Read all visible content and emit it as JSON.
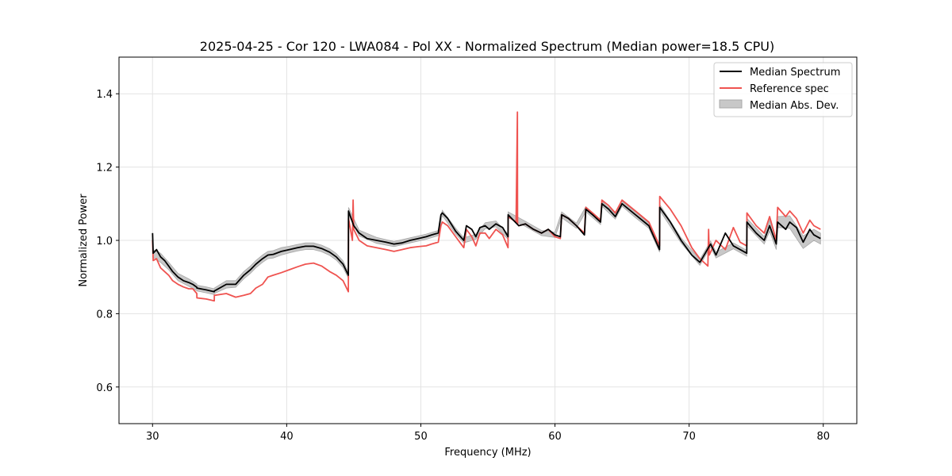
{
  "chart_data": {
    "type": "line",
    "title": "2025-04-25 - Cor 120 - LWA084 - Pol XX - Normalized Spectrum (Median power=18.5 CPU)",
    "xlabel": "Frequency (MHz)",
    "ylabel": "Normalized Power",
    "xlim": [
      27.5,
      82.5
    ],
    "ylim": [
      0.5,
      1.5
    ],
    "xticks": [
      30,
      40,
      50,
      60,
      70,
      80
    ],
    "yticks": [
      0.6,
      0.8,
      1.0,
      1.2,
      1.4
    ],
    "xtick_labels": [
      "30",
      "40",
      "50",
      "60",
      "70",
      "80"
    ],
    "ytick_labels": [
      "0.6",
      "0.8",
      "1.0",
      "1.2",
      "1.4"
    ],
    "grid": true,
    "legend_location": "top-right",
    "colors": {
      "median": "#000000",
      "reference": "#ef5350",
      "mad_fill": "#c8c8c8",
      "mad_edge": "#a8a8a8",
      "grid": "#e3e3e3"
    },
    "series": [
      {
        "name": "Median Spectrum",
        "x": [
          30.0,
          30.05,
          30.3,
          30.6,
          30.9,
          31.2,
          31.5,
          31.9,
          32.3,
          32.7,
          33.0,
          33.3,
          33.31,
          34.0,
          34.6,
          34.61,
          35.5,
          36.2,
          36.8,
          37.3,
          37.7,
          38.2,
          38.6,
          39.0,
          39.6,
          40.2,
          40.8,
          41.4,
          42.0,
          42.6,
          43.2,
          43.7,
          44.2,
          44.6,
          44.61,
          45.0,
          45.4,
          46.0,
          46.7,
          47.4,
          48.0,
          48.6,
          49.2,
          49.8,
          50.4,
          50.8,
          51.3,
          51.5,
          51.6,
          52.0,
          52.6,
          53.2,
          53.4,
          53.8,
          54.1,
          54.4,
          54.8,
          55.1,
          55.6,
          56.1,
          56.5,
          56.51,
          57.3,
          57.8,
          58.4,
          59.0,
          59.5,
          60.0,
          60.4,
          60.5,
          61.0,
          61.6,
          62.2,
          62.3,
          62.8,
          63.4,
          63.5,
          64.0,
          64.5,
          65.0,
          66.0,
          67.0,
          67.8,
          67.81,
          68.6,
          69.4,
          70.2,
          70.8,
          71.6,
          72.0,
          72.7,
          73.3,
          73.8,
          74.3,
          74.31,
          75.0,
          75.6,
          76.0,
          76.5,
          76.6,
          77.2,
          77.5,
          78.0,
          78.5,
          79.0,
          79.3,
          79.8
        ],
        "values": [
          1.02,
          0.965,
          0.975,
          0.955,
          0.945,
          0.93,
          0.915,
          0.9,
          0.89,
          0.885,
          0.88,
          0.872,
          0.87,
          0.865,
          0.86,
          0.862,
          0.88,
          0.88,
          0.905,
          0.92,
          0.935,
          0.95,
          0.96,
          0.962,
          0.97,
          0.975,
          0.98,
          0.984,
          0.984,
          0.978,
          0.968,
          0.955,
          0.935,
          0.905,
          1.08,
          1.04,
          1.02,
          1.005,
          1.0,
          0.995,
          0.99,
          0.993,
          1.0,
          1.005,
          1.01,
          1.015,
          1.02,
          1.07,
          1.075,
          1.06,
          1.025,
          1.0,
          1.04,
          1.03,
          1.01,
          1.035,
          1.04,
          1.03,
          1.045,
          1.035,
          1.01,
          1.07,
          1.04,
          1.045,
          1.03,
          1.02,
          1.03,
          1.015,
          1.01,
          1.07,
          1.06,
          1.04,
          1.015,
          1.085,
          1.07,
          1.05,
          1.1,
          1.085,
          1.065,
          1.1,
          1.07,
          1.04,
          0.975,
          1.09,
          1.05,
          1.0,
          0.96,
          0.94,
          0.99,
          0.96,
          1.02,
          0.985,
          0.975,
          0.965,
          1.05,
          1.02,
          1.0,
          1.04,
          0.99,
          1.05,
          1.03,
          1.05,
          1.035,
          0.995,
          1.03,
          1.015,
          1.005
        ]
      },
      {
        "name": "Reference spec",
        "x": [
          30.0,
          30.05,
          30.3,
          30.6,
          30.9,
          31.2,
          31.5,
          31.9,
          32.3,
          32.7,
          33.0,
          33.3,
          33.31,
          34.0,
          34.6,
          34.61,
          35.5,
          36.2,
          36.8,
          37.3,
          37.7,
          38.2,
          38.6,
          39.0,
          39.6,
          40.2,
          40.8,
          41.4,
          42.0,
          42.6,
          43.2,
          43.7,
          44.2,
          44.6,
          44.61,
          44.9,
          44.95,
          45.0,
          45.4,
          46.0,
          46.7,
          47.4,
          48.0,
          48.6,
          49.2,
          49.8,
          50.4,
          50.8,
          51.3,
          51.5,
          51.6,
          52.0,
          52.6,
          53.2,
          53.4,
          53.8,
          54.1,
          54.4,
          54.8,
          55.1,
          55.6,
          56.1,
          56.5,
          56.51,
          57.1,
          57.2,
          57.21,
          57.3,
          57.8,
          58.4,
          59.0,
          59.5,
          60.0,
          60.4,
          60.5,
          61.0,
          61.6,
          62.2,
          62.3,
          62.8,
          63.4,
          63.5,
          64.0,
          64.5,
          65.0,
          66.0,
          67.0,
          67.8,
          67.81,
          68.6,
          69.4,
          70.2,
          70.8,
          71.4,
          71.45,
          71.5,
          72.0,
          72.7,
          73.3,
          73.8,
          74.3,
          74.31,
          75.0,
          75.6,
          76.0,
          76.5,
          76.6,
          77.2,
          77.5,
          78.0,
          78.5,
          79.0,
          79.3,
          79.8
        ],
        "values": [
          1.0,
          0.945,
          0.95,
          0.925,
          0.915,
          0.905,
          0.89,
          0.88,
          0.873,
          0.868,
          0.868,
          0.855,
          0.843,
          0.84,
          0.835,
          0.85,
          0.855,
          0.845,
          0.85,
          0.855,
          0.87,
          0.88,
          0.9,
          0.905,
          0.912,
          0.92,
          0.928,
          0.935,
          0.938,
          0.93,
          0.915,
          0.905,
          0.89,
          0.86,
          1.06,
          1.0,
          1.11,
          1.03,
          1.0,
          0.985,
          0.98,
          0.975,
          0.97,
          0.975,
          0.98,
          0.983,
          0.985,
          0.99,
          0.995,
          1.04,
          1.05,
          1.04,
          1.01,
          0.98,
          1.03,
          1.01,
          0.985,
          1.02,
          1.02,
          1.005,
          1.03,
          1.015,
          0.98,
          1.065,
          1.05,
          1.35,
          1.045,
          1.04,
          1.045,
          1.03,
          1.02,
          1.03,
          1.01,
          1.005,
          1.07,
          1.06,
          1.04,
          1.02,
          1.09,
          1.075,
          1.055,
          1.11,
          1.095,
          1.075,
          1.11,
          1.08,
          1.05,
          0.985,
          1.12,
          1.085,
          1.04,
          0.98,
          0.95,
          0.93,
          1.03,
          0.96,
          1.0,
          0.975,
          1.035,
          0.995,
          0.985,
          1.075,
          1.04,
          1.02,
          1.065,
          1.0,
          1.09,
          1.065,
          1.08,
          1.06,
          1.02,
          1.055,
          1.04,
          1.03
        ]
      }
    ],
    "mad_band": {
      "name": "Median Abs. Dev.",
      "x": [
        30.0,
        30.6,
        31.2,
        31.9,
        32.7,
        33.3,
        33.31,
        34.0,
        34.6,
        34.61,
        35.5,
        36.2,
        36.8,
        37.3,
        37.7,
        38.2,
        38.6,
        39.0,
        39.6,
        40.2,
        40.8,
        41.4,
        42.0,
        42.6,
        43.2,
        43.7,
        44.2,
        44.6,
        44.61,
        45.4,
        46.7,
        48.0,
        49.2,
        50.4,
        51.3,
        51.6,
        52.6,
        53.2,
        54.1,
        54.8,
        55.6,
        56.5,
        56.51,
        57.8,
        59.0,
        60.0,
        60.5,
        61.6,
        62.3,
        63.4,
        63.5,
        64.5,
        65.0,
        66.0,
        67.0,
        67.8,
        67.81,
        69.4,
        70.8,
        71.6,
        72.0,
        73.3,
        74.3,
        74.31,
        75.6,
        76.0,
        76.5,
        76.6,
        77.5,
        78.5,
        79.3,
        79.8
      ],
      "lower": [
        0.955,
        0.94,
        0.92,
        0.89,
        0.875,
        0.863,
        0.862,
        0.857,
        0.852,
        0.855,
        0.87,
        0.872,
        0.895,
        0.91,
        0.925,
        0.94,
        0.95,
        0.952,
        0.96,
        0.966,
        0.971,
        0.975,
        0.975,
        0.969,
        0.959,
        0.946,
        0.926,
        0.897,
        1.07,
        1.012,
        0.992,
        0.983,
        0.993,
        1.003,
        1.013,
        1.068,
        1.017,
        0.993,
        1.003,
        1.032,
        1.037,
        1.003,
        1.062,
        1.038,
        1.013,
        1.008,
        1.062,
        1.033,
        1.078,
        1.043,
        1.093,
        1.058,
        1.093,
        1.062,
        1.033,
        0.968,
        1.082,
        0.993,
        0.932,
        0.982,
        0.952,
        0.977,
        0.957,
        1.04,
        0.99,
        1.025,
        0.975,
        1.035,
        1.033,
        0.978,
        1.0,
        0.99
      ],
      "upper": [
        0.975,
        0.965,
        0.94,
        0.91,
        0.895,
        0.881,
        0.878,
        0.873,
        0.868,
        0.87,
        0.89,
        0.89,
        0.915,
        0.93,
        0.945,
        0.96,
        0.97,
        0.972,
        0.98,
        0.984,
        0.989,
        0.993,
        0.993,
        0.987,
        0.977,
        0.964,
        0.944,
        0.913,
        1.09,
        1.028,
        1.008,
        0.997,
        1.007,
        1.017,
        1.027,
        1.082,
        1.033,
        1.007,
        1.017,
        1.048,
        1.053,
        1.017,
        1.078,
        1.052,
        1.027,
        1.022,
        1.078,
        1.047,
        1.092,
        1.057,
        1.107,
        1.072,
        1.107,
        1.078,
        1.047,
        0.982,
        1.098,
        1.007,
        0.948,
        0.998,
        0.968,
        0.993,
        0.973,
        1.06,
        1.01,
        1.055,
        1.005,
        1.065,
        1.067,
        1.012,
        1.03,
        1.02
      ]
    },
    "legend": [
      "Median Spectrum",
      "Reference spec",
      "Median Abs. Dev."
    ]
  }
}
